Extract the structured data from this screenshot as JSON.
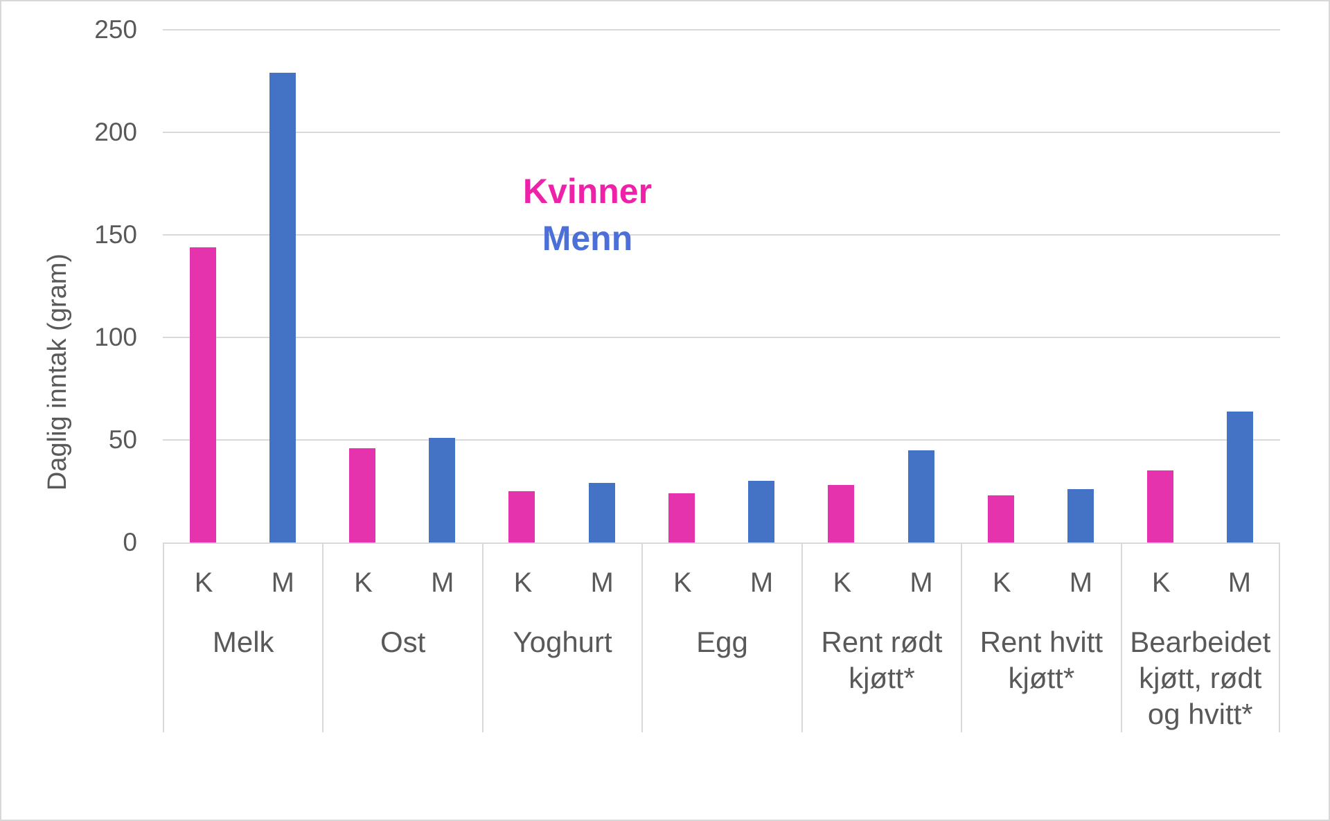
{
  "chart_data": {
    "type": "bar",
    "title": "",
    "ylabel": "Daglig inntak (gram)",
    "xlabel": "",
    "ylim": [
      0,
      250
    ],
    "yticks": [
      0,
      50,
      100,
      150,
      200,
      250
    ],
    "grid": "horizontal",
    "gridline_color": "#d9d9d9",
    "legend_position": "floating-in-plot",
    "categories": [
      "Melk",
      "Ost",
      "Yoghurt",
      "Egg",
      "Rent rødt kjøtt*",
      "Rent hvitt kjøtt*",
      "Bearbeidet kjøtt, rødt og hvitt*"
    ],
    "series": [
      {
        "name": "Kvinner",
        "short_label": "K",
        "color": "#e433ac",
        "legend_text_color": "#ee21a8",
        "values": [
          144,
          46,
          25,
          24,
          28,
          23,
          35
        ]
      },
      {
        "name": "Menn",
        "short_label": "M",
        "color": "#4472c4",
        "legend_text_color": "#4d6fd8",
        "values": [
          229,
          51,
          29,
          30,
          45,
          26,
          64
        ]
      }
    ]
  },
  "axis_text_color": "#595959"
}
